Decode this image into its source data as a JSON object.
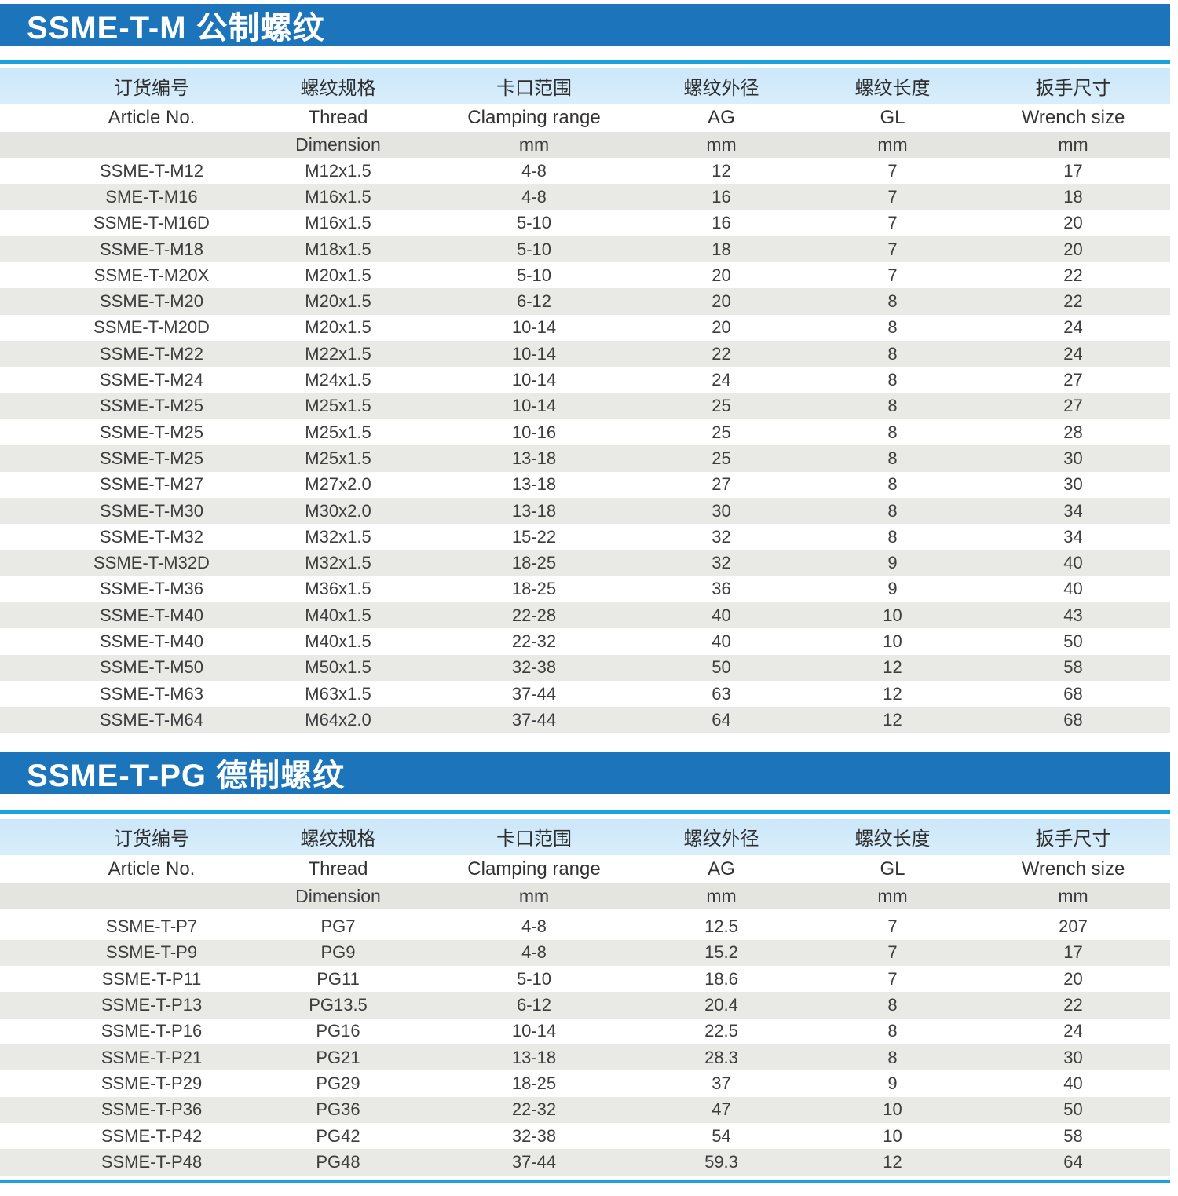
{
  "page": {
    "accent_blue": "#1c75bb",
    "rule_blue": "#18a2de",
    "header_light_blue": "#cde8f9",
    "row_alt_gray": "#e9e9e5",
    "unit_row_gray": "#e4e4e0"
  },
  "sections": [
    {
      "title": "SSME-T-M 公制螺纹",
      "columns": [
        {
          "zh": "订货编号",
          "en": "Article No.",
          "unit": ""
        },
        {
          "zh": "螺纹规格",
          "en": "Thread",
          "unit": "Dimension"
        },
        {
          "zh": "卡口范围",
          "en": "Clamping range",
          "unit": "mm"
        },
        {
          "zh": "螺纹外径",
          "en": "AG",
          "unit": "mm"
        },
        {
          "zh": "螺纹长度",
          "en": "GL",
          "unit": "mm"
        },
        {
          "zh": "扳手尺寸",
          "en": "Wrench size",
          "unit": "mm"
        }
      ],
      "rows": [
        [
          "SSME-T-M12",
          "M12x1.5",
          "4-8",
          "12",
          "7",
          "17"
        ],
        [
          "SME-T-M16",
          "M16x1.5",
          "4-8",
          "16",
          "7",
          "18"
        ],
        [
          "SSME-T-M16D",
          "M16x1.5",
          "5-10",
          "16",
          "7",
          "20"
        ],
        [
          "SSME-T-M18",
          "M18x1.5",
          "5-10",
          "18",
          "7",
          "20"
        ],
        [
          "SSME-T-M20X",
          "M20x1.5",
          "5-10",
          "20",
          "7",
          "22"
        ],
        [
          "SSME-T-M20",
          "M20x1.5",
          "6-12",
          "20",
          "8",
          "22"
        ],
        [
          "SSME-T-M20D",
          "M20x1.5",
          "10-14",
          "20",
          "8",
          "24"
        ],
        [
          "SSME-T-M22",
          "M22x1.5",
          "10-14",
          "22",
          "8",
          "24"
        ],
        [
          "SSME-T-M24",
          "M24x1.5",
          "10-14",
          "24",
          "8",
          "27"
        ],
        [
          "SSME-T-M25",
          "M25x1.5",
          "10-14",
          "25",
          "8",
          "27"
        ],
        [
          "SSME-T-M25",
          "M25x1.5",
          "10-16",
          "25",
          "8",
          "28"
        ],
        [
          "SSME-T-M25",
          "M25x1.5",
          "13-18",
          "25",
          "8",
          "30"
        ],
        [
          "SSME-T-M27",
          "M27x2.0",
          "13-18",
          "27",
          "8",
          "30"
        ],
        [
          "SSME-T-M30",
          "M30x2.0",
          "13-18",
          "30",
          "8",
          "34"
        ],
        [
          "SSME-T-M32",
          "M32x1.5",
          "15-22",
          "32",
          "8",
          "34"
        ],
        [
          "SSME-T-M32D",
          "M32x1.5",
          "18-25",
          "32",
          "9",
          "40"
        ],
        [
          "SSME-T-M36",
          "M36x1.5",
          "18-25",
          "36",
          "9",
          "40"
        ],
        [
          "SSME-T-M40",
          "M40x1.5",
          "22-28",
          "40",
          "10",
          "43"
        ],
        [
          "SSME-T-M40",
          "M40x1.5",
          "22-32",
          "40",
          "10",
          "50"
        ],
        [
          "SSME-T-M50",
          "M50x1.5",
          "32-38",
          "50",
          "12",
          "58"
        ],
        [
          "SSME-T-M63",
          "M63x1.5",
          "37-44",
          "63",
          "12",
          "68"
        ],
        [
          "SSME-T-M64",
          "M64x2.0",
          "37-44",
          "64",
          "12",
          "68"
        ]
      ]
    },
    {
      "title": "SSME-T-PG 德制螺纹",
      "columns": [
        {
          "zh": "订货编号",
          "en": "Article No.",
          "unit": ""
        },
        {
          "zh": "螺纹规格",
          "en": "Thread",
          "unit": "Dimension"
        },
        {
          "zh": "卡口范围",
          "en": "Clamping range",
          "unit": "mm"
        },
        {
          "zh": "螺纹外径",
          "en": "AG",
          "unit": "mm"
        },
        {
          "zh": "螺纹长度",
          "en": "GL",
          "unit": "mm"
        },
        {
          "zh": "扳手尺寸",
          "en": "Wrench size",
          "unit": "mm"
        }
      ],
      "rows": [
        [
          "SSME-T-P7",
          "PG7",
          "4-8",
          "12.5",
          "7",
          "207"
        ],
        [
          "SSME-T-P9",
          "PG9",
          "4-8",
          "15.2",
          "7",
          "17"
        ],
        [
          "SSME-T-P11",
          "PG11",
          "5-10",
          "18.6",
          "7",
          "20"
        ],
        [
          "SSME-T-P13",
          "PG13.5",
          "6-12",
          "20.4",
          "8",
          "22"
        ],
        [
          "SSME-T-P16",
          "PG16",
          "10-14",
          "22.5",
          "8",
          "24"
        ],
        [
          "SSME-T-P21",
          "PG21",
          "13-18",
          "28.3",
          "8",
          "30"
        ],
        [
          "SSME-T-P29",
          "PG29",
          "18-25",
          "37",
          "9",
          "40"
        ],
        [
          "SSME-T-P36",
          "PG36",
          "22-32",
          "47",
          "10",
          "50"
        ],
        [
          "SSME-T-P42",
          "PG42",
          "32-38",
          "54",
          "10",
          "58"
        ],
        [
          "SSME-T-P48",
          "PG48",
          "37-44",
          "59.3",
          "12",
          "64"
        ]
      ]
    }
  ]
}
